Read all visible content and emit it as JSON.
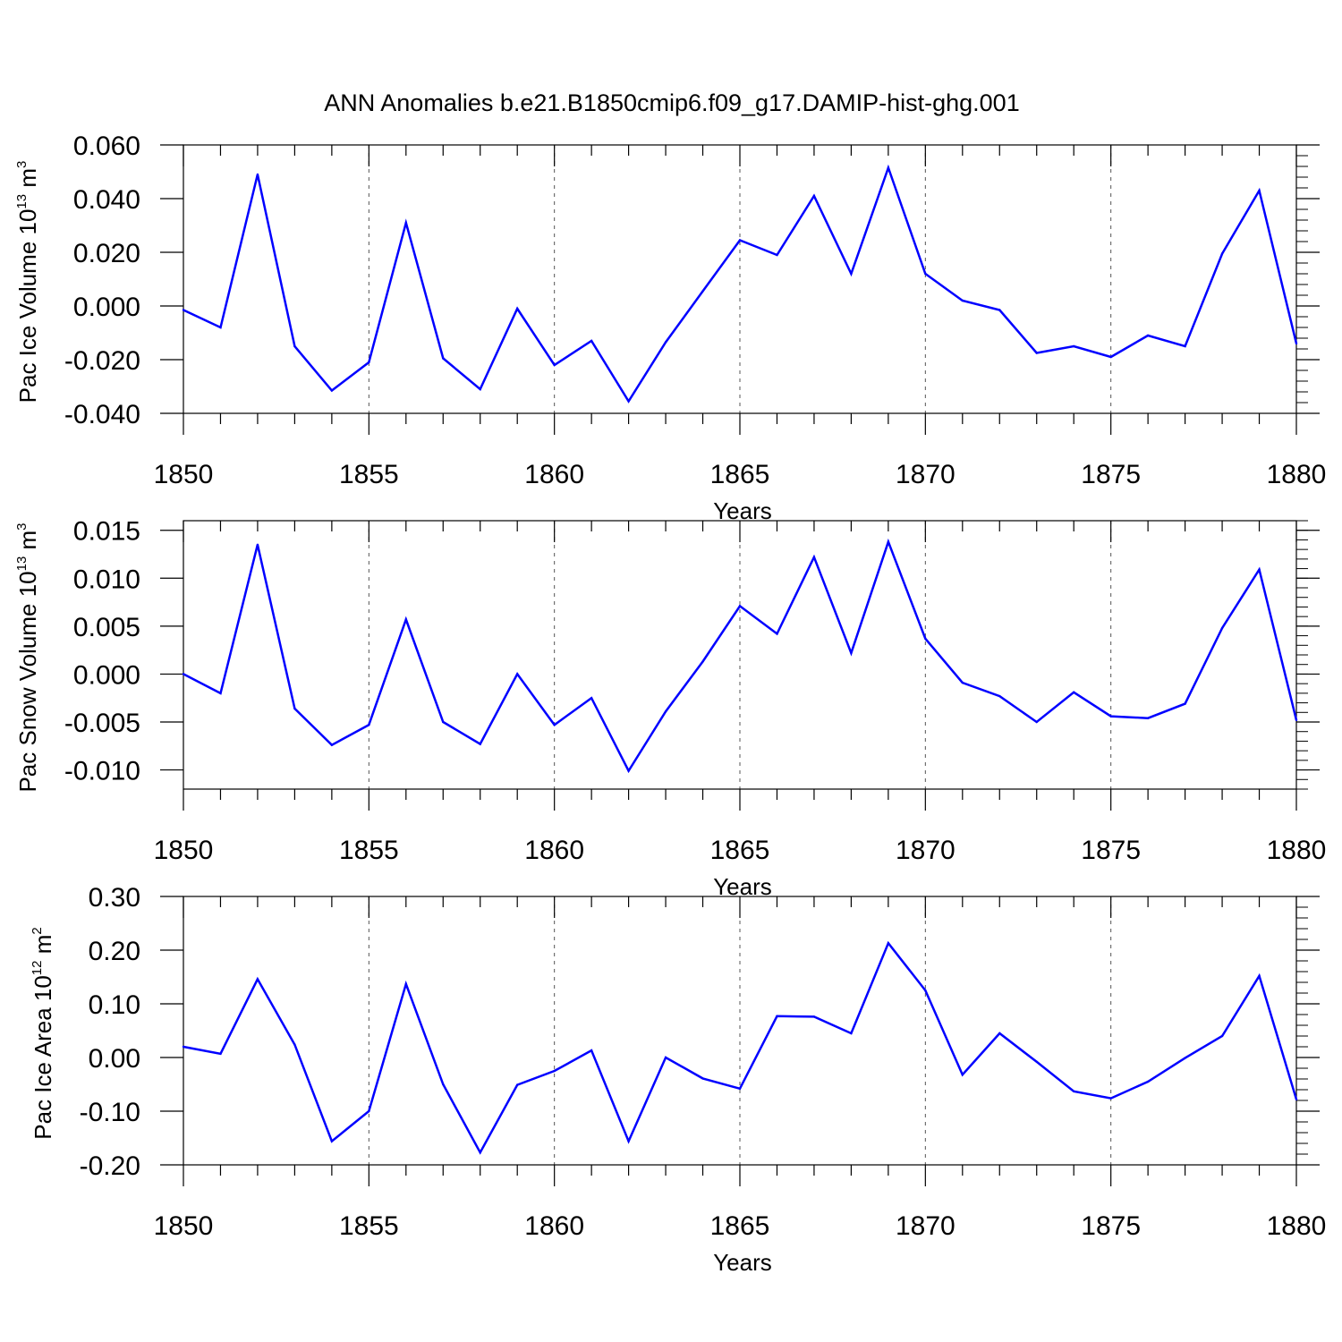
{
  "title": "ANN Anomalies b.e21.B1850cmip6.f09_g17.DAMIP-hist-ghg.001",
  "colors": {
    "series": "#0000ff",
    "axis": "#000000",
    "grid": "#555555"
  },
  "chart_data": [
    {
      "type": "line",
      "ylabel": {
        "main": "Pac Ice Volume 10",
        "exp": "13",
        "unit": " m",
        "unit_exp": "3"
      },
      "xlabel": "Years",
      "xlim": [
        1850,
        1880
      ],
      "ylim": [
        -0.04,
        0.06
      ],
      "yticks": [
        -0.04,
        -0.02,
        0.0,
        0.02,
        0.04,
        0.06
      ],
      "ytick_labels": [
        "-0.040",
        "-0.020",
        "0.000",
        "0.020",
        "0.040",
        "0.060"
      ],
      "xticks": [
        1850,
        1855,
        1860,
        1865,
        1870,
        1875,
        1880
      ],
      "xtick_labels": [
        "1850",
        "1855",
        "1860",
        "1865",
        "1870",
        "1875",
        "1880"
      ],
      "grid": "vertical dashed at major x ticks",
      "x": [
        1850,
        1851,
        1852,
        1853,
        1854,
        1855,
        1856,
        1857,
        1858,
        1859,
        1860,
        1861,
        1862,
        1863,
        1864,
        1865,
        1866,
        1867,
        1868,
        1869,
        1870,
        1871,
        1872,
        1873,
        1874,
        1875,
        1876,
        1877,
        1878,
        1879,
        1880
      ],
      "values": [
        -0.0015,
        -0.008,
        0.049,
        -0.015,
        -0.0315,
        -0.021,
        0.031,
        -0.0195,
        -0.031,
        -0.001,
        -0.022,
        -0.013,
        -0.0355,
        -0.0135,
        0.0055,
        0.0245,
        0.019,
        0.041,
        0.012,
        0.0515,
        0.012,
        0.002,
        -0.0015,
        -0.0175,
        -0.015,
        -0.019,
        -0.011,
        -0.015,
        0.0195,
        0.043,
        -0.014
      ]
    },
    {
      "type": "line",
      "ylabel": {
        "main": "Pac Snow Volume 10",
        "exp": "13",
        "unit": " m",
        "unit_exp": "3"
      },
      "xlabel": "Years",
      "xlim": [
        1850,
        1880
      ],
      "ylim": [
        -0.012,
        0.016
      ],
      "yticks": [
        -0.01,
        -0.005,
        0.0,
        0.005,
        0.01,
        0.015
      ],
      "ytick_labels": [
        "-0.010",
        "-0.005",
        "0.000",
        "0.005",
        "0.010",
        "0.015"
      ],
      "xticks": [
        1850,
        1855,
        1860,
        1865,
        1870,
        1875,
        1880
      ],
      "xtick_labels": [
        "1850",
        "1855",
        "1860",
        "1865",
        "1870",
        "1875",
        "1880"
      ],
      "grid": "vertical dashed at major x ticks",
      "x": [
        1850,
        1851,
        1852,
        1853,
        1854,
        1855,
        1856,
        1857,
        1858,
        1859,
        1860,
        1861,
        1862,
        1863,
        1864,
        1865,
        1866,
        1867,
        1868,
        1869,
        1870,
        1871,
        1872,
        1873,
        1874,
        1875,
        1876,
        1877,
        1878,
        1879,
        1880
      ],
      "values": [
        0.0,
        -0.002,
        0.0135,
        -0.0036,
        -0.0074,
        -0.0053,
        0.0057,
        -0.005,
        -0.0073,
        0.0,
        -0.0053,
        -0.0025,
        -0.0101,
        -0.0039,
        0.0013,
        0.0071,
        0.0042,
        0.0122,
        0.0022,
        0.0138,
        0.0037,
        -0.0009,
        -0.0023,
        -0.005,
        -0.0019,
        -0.0044,
        -0.0046,
        -0.0031,
        0.0048,
        0.0109,
        -0.0048
      ]
    },
    {
      "type": "line",
      "ylabel": {
        "main": "Pac Ice Area 10",
        "exp": "12",
        "unit": " m",
        "unit_exp": "2"
      },
      "xlabel": "Years",
      "xlim": [
        1850,
        1880
      ],
      "ylim": [
        -0.2,
        0.3
      ],
      "yticks": [
        -0.2,
        -0.1,
        0.0,
        0.1,
        0.2,
        0.3
      ],
      "ytick_labels": [
        "-0.20",
        "-0.10",
        "0.00",
        "0.10",
        "0.20",
        "0.30"
      ],
      "xticks": [
        1850,
        1855,
        1860,
        1865,
        1870,
        1875,
        1880
      ],
      "xtick_labels": [
        "1850",
        "1855",
        "1860",
        "1865",
        "1870",
        "1875",
        "1880"
      ],
      "grid": "vertical dashed at major x ticks",
      "x": [
        1850,
        1851,
        1852,
        1853,
        1854,
        1855,
        1856,
        1857,
        1858,
        1859,
        1860,
        1861,
        1862,
        1863,
        1864,
        1865,
        1866,
        1867,
        1868,
        1869,
        1870,
        1871,
        1872,
        1873,
        1874,
        1875,
        1876,
        1877,
        1878,
        1879,
        1880
      ],
      "values": [
        0.02,
        0.007,
        0.146,
        0.024,
        -0.156,
        -0.1,
        0.137,
        -0.05,
        -0.177,
        -0.051,
        -0.025,
        0.013,
        -0.156,
        0.0,
        -0.039,
        -0.058,
        0.077,
        0.076,
        0.045,
        0.213,
        0.125,
        -0.032,
        0.045,
        -0.008,
        -0.063,
        -0.076,
        -0.045,
        -0.001,
        0.04,
        0.152,
        -0.078
      ]
    }
  ]
}
